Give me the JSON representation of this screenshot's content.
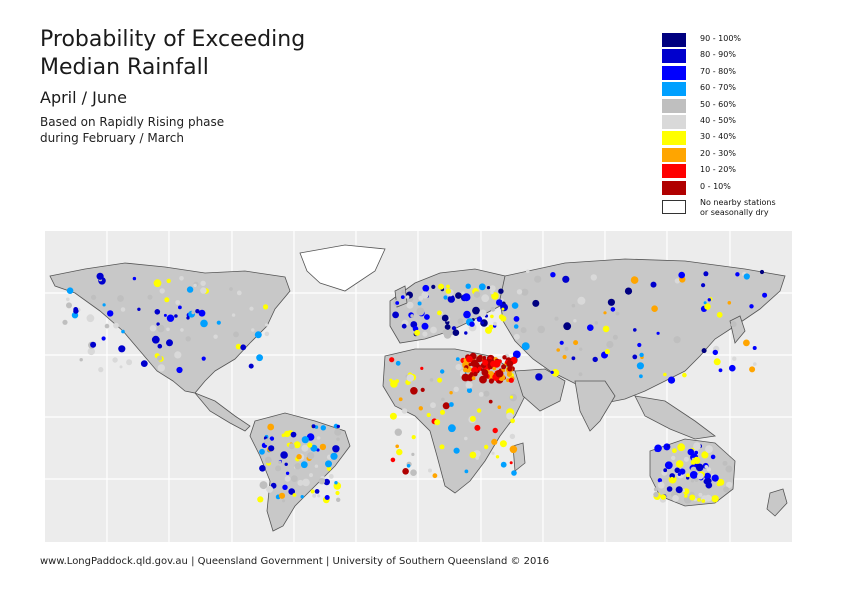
{
  "header": {
    "title_line1": "Probability of Exceeding",
    "title_line2": "Median Rainfall",
    "period": "April / June",
    "basis_line1": "Based on Rapidly Rising phase",
    "basis_line2": "during February / March"
  },
  "legend": {
    "items": [
      {
        "label": "90 - 100%",
        "color": "#000080"
      },
      {
        "label": "80 - 90%",
        "color": "#0000cd"
      },
      {
        "label": "70 - 80%",
        "color": "#0000ff"
      },
      {
        "label": "60 - 70%",
        "color": "#00a0ff"
      },
      {
        "label": "50 - 60%",
        "color": "#bfbfbf"
      },
      {
        "label": "40 - 50%",
        "color": "#d9d9d9"
      },
      {
        "label": "30 - 40%",
        "color": "#ffff00"
      },
      {
        "label": "20 - 30%",
        "color": "#ffa500"
      },
      {
        "label": "10 - 20%",
        "color": "#ff0000"
      },
      {
        "label": "0 - 10%",
        "color": "#b00000"
      }
    ],
    "nodata_line1": "No nearby stations",
    "nodata_line2": "or seasonally dry"
  },
  "map": {
    "ocean_color": "#ececec",
    "grid_color": "#ffffff",
    "land_base_color": "#c8c8c8",
    "nodata_color": "#ffffff"
  },
  "footer": {
    "text": "www.LongPaddock.qld.gov.au | Queensland Government | University of Southern Queensland © 2016"
  }
}
